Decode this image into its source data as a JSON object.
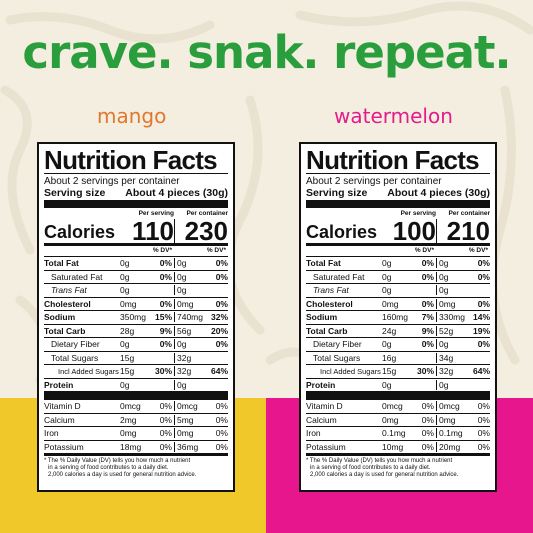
{
  "headline": "crave. snak. repeat.",
  "colors": {
    "headline": "#2a9e3c",
    "mango": "#e0792e",
    "watermelon": "#e41b8c",
    "yellow": "#f0c829",
    "pink": "#e8168c",
    "background": "#f3eee0"
  },
  "labels": [
    {
      "flavor": "mango",
      "title": "Nutrition Facts",
      "servings": "About 2 servings per container",
      "serving_size_label": "Serving size",
      "serving_size_value": "About 4 pieces (30g)",
      "per_serving": "Per serving",
      "per_container": "Per container",
      "calories_label": "Calories",
      "calories_serving": "110",
      "calories_container": "230",
      "dv_header_1": "% DV*",
      "dv_header_2": "% DV*",
      "rows": [
        {
          "name": "Total Fat",
          "a": "0g",
          "p": "0%",
          "a2": "0g",
          "p2": "0%"
        },
        {
          "name": "Saturated Fat",
          "a": "0g",
          "p": "0%",
          "a2": "0g",
          "p2": "0%"
        },
        {
          "name": "Trans Fat",
          "a": "0g",
          "p": "",
          "a2": "0g",
          "p2": ""
        },
        {
          "name": "Cholesterol",
          "a": "0mg",
          "p": "0%",
          "a2": "0mg",
          "p2": "0%"
        },
        {
          "name": "Sodium",
          "a": "350mg",
          "p": "15%",
          "a2": "740mg",
          "p2": "32%"
        },
        {
          "name": "Total Carb",
          "a": "28g",
          "p": "9%",
          "a2": "56g",
          "p2": "20%"
        },
        {
          "name": "Dietary Fiber",
          "a": "0g",
          "p": "0%",
          "a2": "0g",
          "p2": "0%"
        },
        {
          "name": "Total Sugars",
          "a": "15g",
          "p": "",
          "a2": "32g",
          "p2": ""
        },
        {
          "name": "Incl Added Sugars",
          "a": "15g",
          "p": "30%",
          "a2": "32g",
          "p2": "64%"
        },
        {
          "name": "Protein",
          "a": "0g",
          "p": "",
          "a2": "0g",
          "p2": ""
        }
      ],
      "vitamins": [
        {
          "name": "Vitamin D",
          "a": "0mcg",
          "p": "0%",
          "a2": "0mcg",
          "p2": "0%"
        },
        {
          "name": "Calcium",
          "a": "2mg",
          "p": "0%",
          "a2": "5mg",
          "p2": "0%"
        },
        {
          "name": "Iron",
          "a": "0mg",
          "p": "0%",
          "a2": "0mg",
          "p2": "0%"
        },
        {
          "name": "Potassium",
          "a": "18mg",
          "p": "0%",
          "a2": "36mg",
          "p2": "0%"
        }
      ],
      "footnote_1": "* The % Daily Value (DV) tells you how much a nutrient",
      "footnote_2": "in a serving of food contributes to a daily diet.",
      "footnote_3": "2,000 calories a day is used for general nutrition advice."
    },
    {
      "flavor": "watermelon",
      "title": "Nutrition Facts",
      "servings": "About 2 servings per container",
      "serving_size_label": "Serving size",
      "serving_size_value": "About 4 pieces (30g)",
      "per_serving": "Per serving",
      "per_container": "Per container",
      "calories_label": "Calories",
      "calories_serving": "100",
      "calories_container": "210",
      "dv_header_1": "% DV*",
      "dv_header_2": "% DV*",
      "rows": [
        {
          "name": "Total Fat",
          "a": "0g",
          "p": "0%",
          "a2": "0g",
          "p2": "0%"
        },
        {
          "name": "Saturated Fat",
          "a": "0g",
          "p": "0%",
          "a2": "0g",
          "p2": "0%"
        },
        {
          "name": "Trans Fat",
          "a": "0g",
          "p": "",
          "a2": "0g",
          "p2": ""
        },
        {
          "name": "Cholesterol",
          "a": "0mg",
          "p": "0%",
          "a2": "0mg",
          "p2": "0%"
        },
        {
          "name": "Sodium",
          "a": "160mg",
          "p": "7%",
          "a2": "330mg",
          "p2": "14%"
        },
        {
          "name": "Total Carb",
          "a": "24g",
          "p": "9%",
          "a2": "52g",
          "p2": "19%"
        },
        {
          "name": "Dietary Fiber",
          "a": "0g",
          "p": "0%",
          "a2": "0g",
          "p2": "0%"
        },
        {
          "name": "Total Sugars",
          "a": "16g",
          "p": "",
          "a2": "34g",
          "p2": ""
        },
        {
          "name": "Incl Added Sugars",
          "a": "15g",
          "p": "30%",
          "a2": "32g",
          "p2": "64%"
        },
        {
          "name": "Protein",
          "a": "0g",
          "p": "",
          "a2": "0g",
          "p2": ""
        }
      ],
      "vitamins": [
        {
          "name": "Vitamin D",
          "a": "0mcg",
          "p": "0%",
          "a2": "0mcg",
          "p2": "0%"
        },
        {
          "name": "Calcium",
          "a": "0mg",
          "p": "0%",
          "a2": "0mg",
          "p2": "0%"
        },
        {
          "name": "Iron",
          "a": "0.1mg",
          "p": "0%",
          "a2": "0.1mg",
          "p2": "0%"
        },
        {
          "name": "Potassium",
          "a": "10mg",
          "p": "0%",
          "a2": "20mg",
          "p2": "0%"
        }
      ],
      "footnote_1": "* The % Daily Value (DV) tells you how much a nutrient",
      "footnote_2": "in a serving of food contributes to a daily diet.",
      "footnote_3": "2,000 calories a day is used for general nutrition advice."
    }
  ]
}
